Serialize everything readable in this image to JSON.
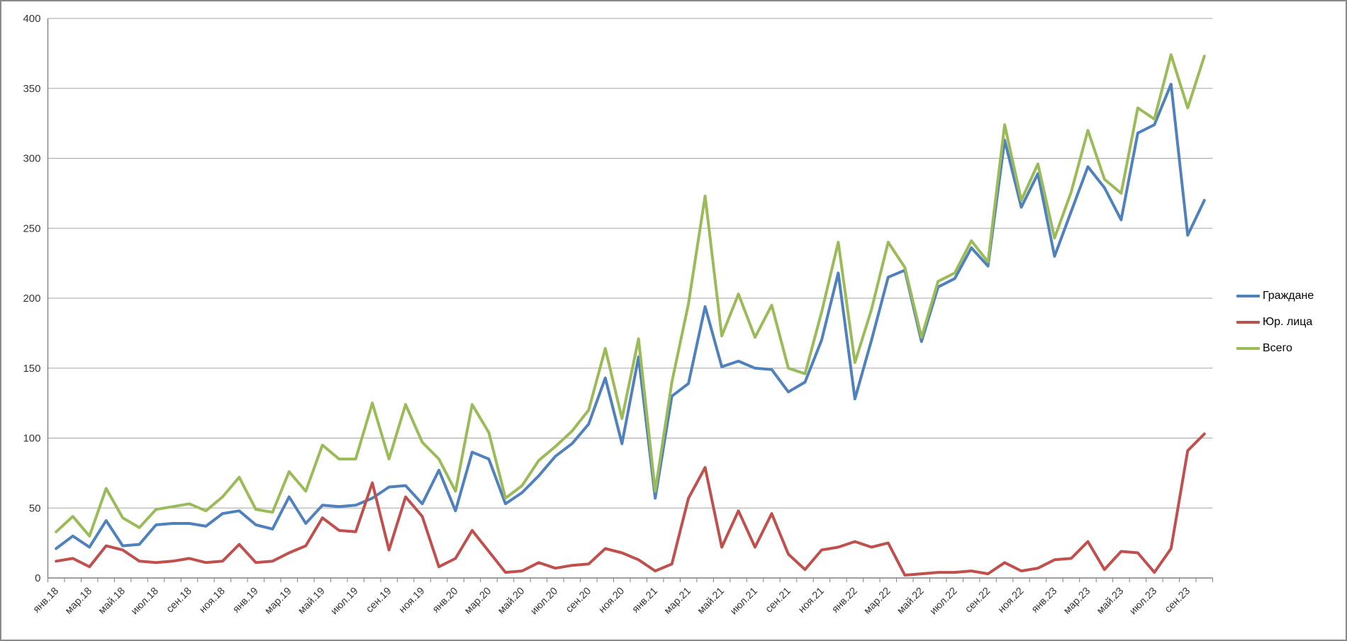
{
  "chart_data": {
    "type": "line",
    "title": "",
    "grid": "horizontal",
    "legend_position": "right",
    "n_points": 70,
    "x_label_every_n_months": 2,
    "x_labels": [
      "янв.18",
      "мар.18",
      "май.18",
      "июл.18",
      "сен.18",
      "ноя.18",
      "янв.19",
      "мар.19",
      "май.19",
      "июл.19",
      "сен.19",
      "ноя.19",
      "янв.20",
      "мар.20",
      "май.20",
      "июл.20",
      "сен.20",
      "ноя.20",
      "янв.21",
      "мар.21",
      "май.21",
      "июл.21",
      "сен.21",
      "ноя.21",
      "янв.22",
      "мар.22",
      "май.22",
      "июл.22",
      "сен.22",
      "ноя.22",
      "янв.23",
      "мар.23",
      "май.23",
      "июл.23",
      "сен.23"
    ],
    "y_axis": {
      "min": 0,
      "max": 400,
      "step": 50,
      "tick_labels": [
        "0",
        "50",
        "100",
        "150",
        "200",
        "250",
        "300",
        "350",
        "400"
      ]
    },
    "series": [
      {
        "name": "Граждане",
        "color": "#4F81BD",
        "values": [
          21,
          30,
          22,
          41,
          23,
          24,
          38,
          39,
          39,
          37,
          46,
          48,
          38,
          35,
          58,
          39,
          52,
          51,
          52,
          57,
          65,
          66,
          53,
          77,
          48,
          90,
          85,
          53,
          61,
          73,
          87,
          96,
          110,
          143,
          96,
          158,
          57,
          130,
          139,
          194,
          151,
          155,
          150,
          149,
          133,
          140,
          170,
          218,
          128,
          170,
          215,
          220,
          169,
          208,
          214,
          236,
          223,
          313,
          265,
          289,
          230,
          262,
          294,
          279,
          256,
          318,
          324,
          353,
          245,
          270
        ]
      },
      {
        "name": "Юр. лица",
        "color": "#C0504D",
        "values": [
          12,
          14,
          8,
          23,
          20,
          12,
          11,
          12,
          14,
          11,
          12,
          24,
          11,
          12,
          18,
          23,
          43,
          34,
          33,
          68,
          20,
          58,
          44,
          8,
          14,
          34,
          19,
          4,
          5,
          11,
          7,
          9,
          10,
          21,
          18,
          13,
          5,
          10,
          57,
          79,
          22,
          48,
          22,
          46,
          17,
          6,
          20,
          22,
          26,
          22,
          25,
          2,
          3,
          4,
          4,
          5,
          3,
          11,
          5,
          7,
          13,
          14,
          26,
          6,
          19,
          18,
          4,
          21,
          91,
          103
        ]
      },
      {
        "name": "Всего",
        "color": "#9BBB59",
        "values": [
          33,
          44,
          30,
          64,
          43,
          36,
          49,
          51,
          53,
          48,
          58,
          72,
          49,
          47,
          76,
          62,
          95,
          85,
          85,
          125,
          85,
          124,
          97,
          85,
          62,
          124,
          104,
          57,
          66,
          84,
          94,
          105,
          120,
          164,
          114,
          171,
          62,
          140,
          196,
          273,
          173,
          203,
          172,
          195,
          150,
          146,
          190,
          240,
          154,
          192,
          240,
          222,
          172,
          212,
          218,
          241,
          226,
          324,
          270,
          296,
          243,
          276,
          320,
          285,
          275,
          336,
          328,
          374,
          336,
          373
        ]
      }
    ]
  }
}
